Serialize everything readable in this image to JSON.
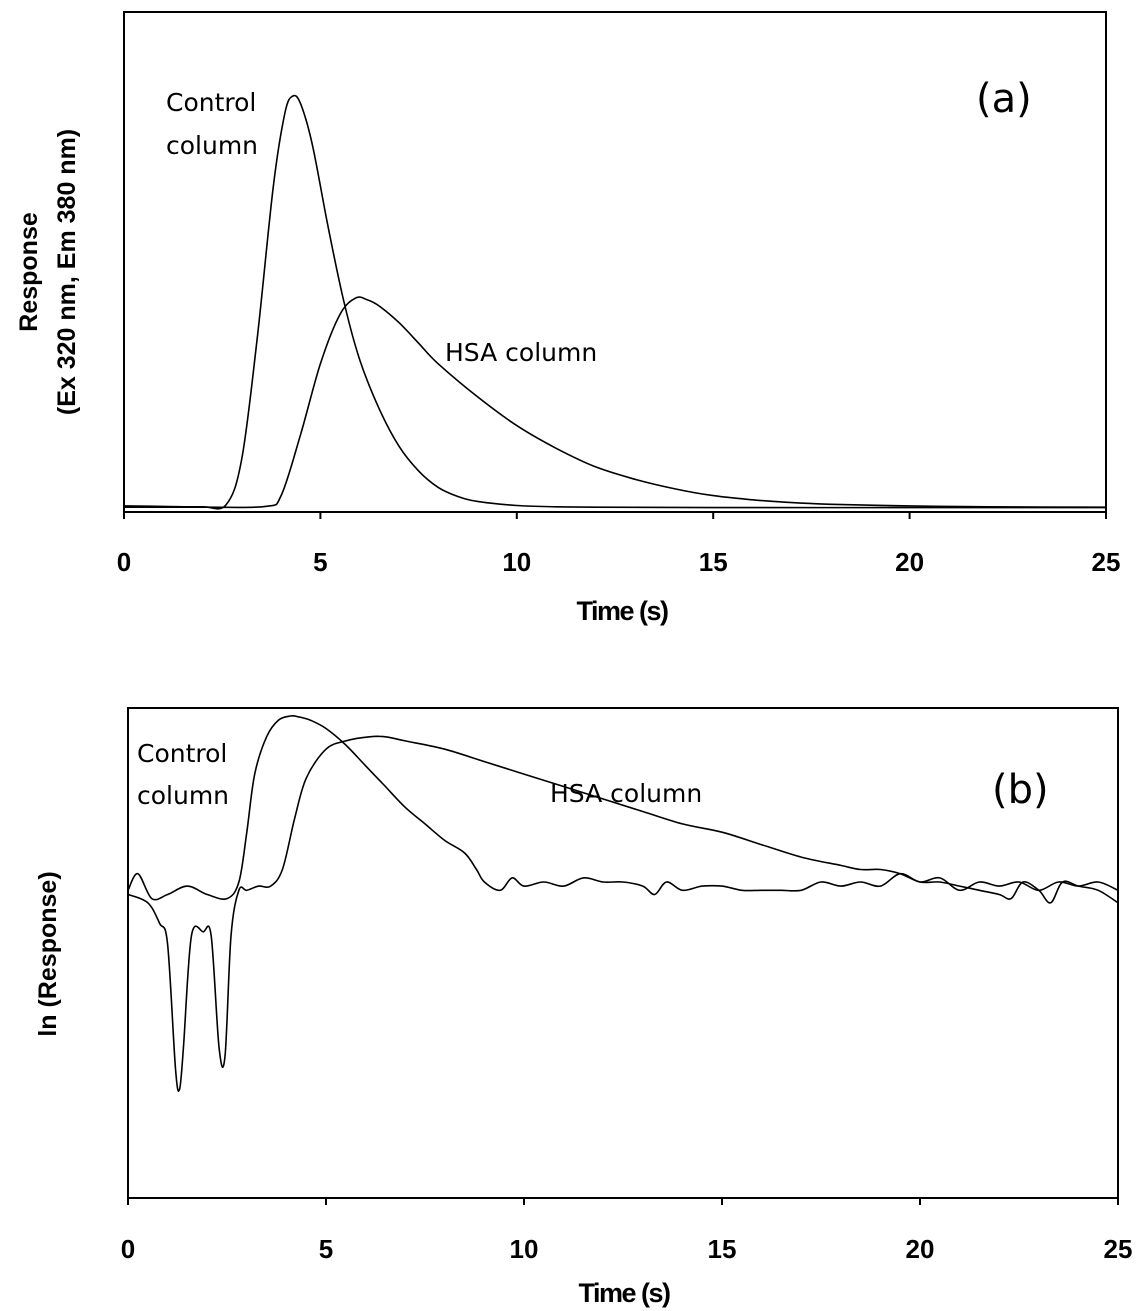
{
  "chart_data": [
    {
      "type": "line",
      "panel_label": "(a)",
      "xlabel": "Time (s)",
      "ylabel_line1": "Response",
      "ylabel_line2": "(Ex 320 nm, Em 380 nm)",
      "xlim": [
        0,
        25
      ],
      "xticks": [
        "0",
        "5",
        "10",
        "15",
        "20",
        "25"
      ],
      "ylim": [
        0,
        1
      ],
      "y_tick_labels": "none",
      "grid": false,
      "series": [
        {
          "name": "Control column",
          "x": [
            0,
            1,
            2,
            2.6,
            3.0,
            3.4,
            3.8,
            4.1,
            4.3,
            4.5,
            4.8,
            5.2,
            5.6,
            6.0,
            6.5,
            7.0,
            7.5,
            8.0,
            8.5,
            9.0,
            10,
            11,
            12,
            15,
            20,
            25
          ],
          "y": [
            0.005,
            0.004,
            0.003,
            0.008,
            0.12,
            0.42,
            0.78,
            0.96,
            1.0,
            0.98,
            0.88,
            0.68,
            0.5,
            0.36,
            0.24,
            0.15,
            0.09,
            0.05,
            0.028,
            0.016,
            0.006,
            0.003,
            0.002,
            0.001,
            0.001,
            0.001
          ]
        },
        {
          "name": "HSA column",
          "x": [
            0,
            2,
            3.6,
            4.0,
            4.5,
            5.0,
            5.5,
            5.9,
            6.2,
            6.5,
            7.0,
            7.5,
            8.0,
            9.0,
            10,
            11,
            12,
            13,
            14,
            15,
            16,
            17,
            18,
            20,
            22,
            25
          ],
          "y": [
            0.002,
            0.002,
            0.004,
            0.03,
            0.18,
            0.35,
            0.47,
            0.51,
            0.505,
            0.49,
            0.45,
            0.4,
            0.35,
            0.27,
            0.2,
            0.145,
            0.1,
            0.07,
            0.047,
            0.03,
            0.02,
            0.013,
            0.009,
            0.005,
            0.003,
            0.002
          ]
        }
      ],
      "annotations": {
        "control_line1": "Control",
        "control_line2": "column",
        "hsa": "HSA column"
      }
    },
    {
      "type": "line",
      "panel_label": "(b)",
      "xlabel": "Time (s)",
      "ylabel": "ln (Response)",
      "xlim": [
        0,
        25
      ],
      "xticks": [
        "0",
        "5",
        "10",
        "15",
        "20",
        "25"
      ],
      "ylim": [
        0,
        1
      ],
      "y_tick_labels": "none",
      "grid": false,
      "series": [
        {
          "name": "Control column",
          "x": [
            0,
            0.25,
            0.6,
            1.0,
            1.5,
            2.0,
            2.5,
            2.8,
            3.0,
            3.2,
            3.5,
            3.8,
            4.1,
            4.3,
            4.6,
            5.0,
            5.5,
            6.0,
            6.5,
            7.0,
            7.5,
            8.0,
            8.5,
            8.8,
            9.0,
            9.4,
            9.7,
            10,
            10.5,
            11,
            11.5,
            12,
            12.5,
            13,
            13.3,
            13.6,
            14,
            14.5,
            15,
            15.5,
            16,
            16.5,
            17,
            17.5,
            18,
            18.5,
            19,
            19.5,
            20,
            20.5,
            21,
            21.5,
            22,
            22.5,
            23,
            23.5,
            24,
            24.5,
            25
          ],
          "y": [
            0.58,
            0.62,
            0.56,
            0.57,
            0.59,
            0.57,
            0.56,
            0.6,
            0.72,
            0.86,
            0.95,
            0.99,
            1.0,
            0.998,
            0.99,
            0.97,
            0.93,
            0.88,
            0.83,
            0.78,
            0.74,
            0.7,
            0.67,
            0.63,
            0.6,
            0.58,
            0.61,
            0.59,
            0.6,
            0.59,
            0.61,
            0.6,
            0.6,
            0.59,
            0.57,
            0.6,
            0.58,
            0.59,
            0.59,
            0.58,
            0.58,
            0.58,
            0.58,
            0.6,
            0.59,
            0.6,
            0.59,
            0.62,
            0.6,
            0.61,
            0.58,
            0.6,
            0.59,
            0.6,
            0.58,
            0.6,
            0.59,
            0.6,
            0.58
          ]
        },
        {
          "name": "HSA column",
          "x": [
            0,
            0.5,
            0.8,
            1.0,
            1.2,
            1.3,
            1.4,
            1.6,
            1.9,
            2.1,
            2.3,
            2.45,
            2.6,
            2.8,
            3.0,
            3.3,
            3.6,
            3.9,
            4.2,
            4.5,
            5.0,
            5.5,
            6.1,
            6.5,
            7.0,
            8.0,
            9.0,
            10,
            11,
            12,
            13,
            14,
            15,
            16,
            17,
            18,
            18.5,
            19,
            19.5,
            20,
            20.5,
            21,
            21.5,
            22,
            22.3,
            22.6,
            23,
            23.3,
            23.6,
            24,
            24.5,
            25
          ],
          "y": [
            0.57,
            0.55,
            0.5,
            0.45,
            0.15,
            0.1,
            0.2,
            0.47,
            0.48,
            0.47,
            0.2,
            0.18,
            0.47,
            0.58,
            0.58,
            0.59,
            0.59,
            0.63,
            0.75,
            0.85,
            0.92,
            0.94,
            0.95,
            0.95,
            0.94,
            0.92,
            0.89,
            0.86,
            0.83,
            0.8,
            0.77,
            0.74,
            0.72,
            0.69,
            0.66,
            0.64,
            0.63,
            0.63,
            0.62,
            0.6,
            0.6,
            0.59,
            0.58,
            0.57,
            0.56,
            0.6,
            0.58,
            0.55,
            0.6,
            0.59,
            0.58,
            0.55
          ]
        }
      ],
      "annotations": {
        "control_line1": "Control",
        "control_line2": "column",
        "hsa": "HSA column"
      }
    }
  ]
}
